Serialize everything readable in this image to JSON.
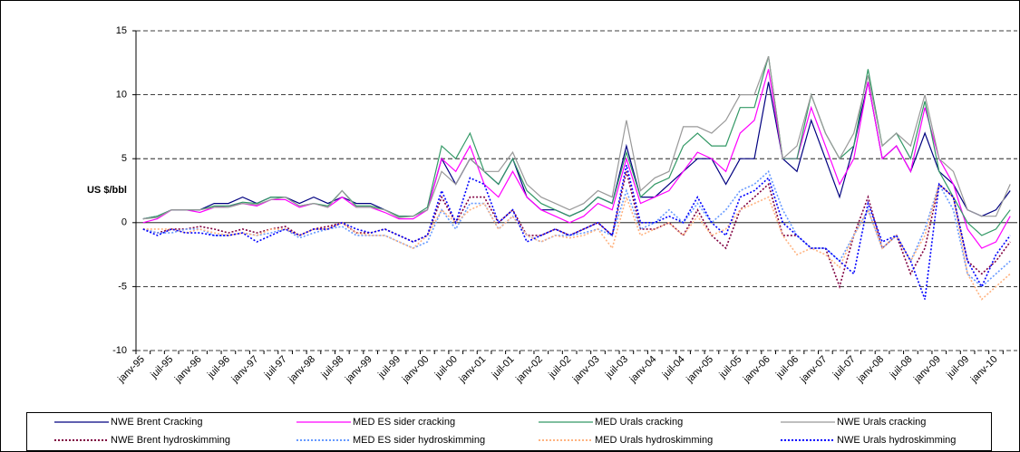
{
  "chart_data": {
    "type": "line",
    "y_label": "US $/bbl",
    "categories": [
      "janv-95",
      null,
      "juil-95",
      null,
      "janv-96",
      null,
      "juil-96",
      null,
      "janv-97",
      null,
      "juil-97",
      null,
      "janv-98",
      null,
      "juil-98",
      null,
      "janv-99",
      null,
      "juil-99",
      null,
      "janv-00",
      null,
      "juil-00",
      null,
      "janv-01",
      null,
      "juil-01",
      null,
      "janv-02",
      null,
      "juil-02",
      null,
      "janv-03",
      null,
      "juil-03",
      null,
      "janv-04",
      null,
      "juil-04",
      null,
      "janv-05",
      null,
      "juil-05",
      null,
      "janv-06",
      null,
      "juil-06",
      null,
      "janv-07",
      null,
      "juil-07",
      null,
      "janv-08",
      null,
      "juil-08",
      null,
      "janv-09",
      null,
      "juil-09",
      null,
      "janv-10",
      null
    ],
    "ylim": [
      -10,
      15
    ],
    "yticks": [
      -10,
      -5,
      0,
      5,
      10,
      15
    ],
    "grid": true,
    "series": [
      {
        "name": "NWE Brent Cracking",
        "color": "#000080",
        "dash": false,
        "values": [
          0.3,
          0.5,
          1,
          1,
          1,
          1.5,
          1.5,
          2,
          1.5,
          2,
          2,
          1.5,
          2,
          1.5,
          2,
          1.5,
          1.5,
          1,
          0.5,
          0.5,
          1,
          5,
          3,
          5,
          4,
          3,
          5,
          2,
          1,
          1,
          0.5,
          1,
          2,
          1.5,
          6,
          2,
          2,
          3,
          4,
          5,
          5,
          3,
          5,
          5,
          11,
          5,
          4,
          8,
          5,
          2,
          6,
          11,
          5,
          6,
          4,
          7,
          4,
          3,
          1,
          0.5,
          1,
          2.5
        ]
      },
      {
        "name": "MED ES sider cracking",
        "color": "#ff00ff",
        "dash": false,
        "values": [
          0,
          0.3,
          1,
          1,
          0.8,
          1.2,
          1.3,
          1.5,
          1.3,
          1.8,
          1.8,
          1.2,
          1.5,
          1.2,
          2,
          1.2,
          1.2,
          0.8,
          0.3,
          0.3,
          1,
          5,
          4,
          6,
          3,
          2,
          4,
          2,
          1,
          0.5,
          0,
          0.5,
          1.5,
          1,
          5,
          1.5,
          2,
          2.5,
          4,
          5.5,
          5,
          4,
          7,
          8,
          12,
          5,
          5,
          9,
          6,
          3,
          5,
          11,
          5,
          6,
          4,
          9,
          5,
          3,
          -0.5,
          -2,
          -1.5,
          0.5
        ]
      },
      {
        "name": "MED Urals cracking",
        "color": "#339966",
        "dash": false,
        "values": [
          0.3,
          0.5,
          1,
          1,
          1,
          1.3,
          1.3,
          1.6,
          1.5,
          2,
          2,
          1.3,
          1.5,
          1.3,
          2.5,
          1.3,
          1.3,
          1,
          0.5,
          0.5,
          1.2,
          6,
          5,
          7,
          4,
          3,
          5,
          2.5,
          1.5,
          1,
          0.5,
          1,
          2,
          1.5,
          5.5,
          2,
          3,
          3.5,
          6,
          7,
          6,
          6,
          9,
          9,
          13,
          5,
          5,
          10,
          7,
          5,
          6,
          12,
          6,
          7,
          5,
          9.5,
          4,
          2,
          0,
          -1,
          -0.5,
          1
        ]
      },
      {
        "name": "NWE Urals cracking",
        "color": "#999999",
        "dash": false,
        "values": [
          0.3,
          0.4,
          1,
          1,
          1,
          1.2,
          1.2,
          1.5,
          1.4,
          1.8,
          2,
          1.3,
          1.5,
          1.2,
          2.5,
          1.2,
          1.2,
          1,
          0.4,
          0.5,
          1,
          4,
          3,
          5,
          4,
          4,
          5.5,
          3,
          2,
          1.5,
          1,
          1.5,
          2.5,
          2,
          8,
          2.5,
          3.5,
          4,
          7.5,
          7.5,
          7,
          8,
          10,
          10,
          13,
          5,
          6,
          10,
          7,
          5,
          7,
          11.5,
          6,
          7,
          6,
          10,
          5,
          4,
          1,
          0.5,
          0.5,
          3
        ]
      },
      {
        "name": "NWE Brent hydroskimming",
        "color": "#800040",
        "dash": true,
        "values": [
          -0.5,
          -0.8,
          -0.5,
          -0.5,
          -0.3,
          -0.5,
          -0.8,
          -0.5,
          -0.8,
          -0.5,
          -0.3,
          -1,
          -0.5,
          -0.3,
          0,
          -0.8,
          -0.8,
          -0.5,
          -1,
          -1.5,
          -1,
          2,
          0,
          2,
          2,
          0,
          1,
          -1,
          -1,
          -0.5,
          -1,
          -0.5,
          0,
          -1,
          4,
          -0.5,
          -0.5,
          0,
          -1,
          1,
          -1,
          -2,
          1,
          2,
          3,
          -1,
          -1,
          -2,
          -2,
          -5,
          -1,
          2,
          -2,
          -1,
          -4,
          -2,
          3,
          2,
          -3,
          -4,
          -3,
          -1.5
        ]
      },
      {
        "name": "MED ES sider hydroskimming",
        "color": "#6699ff",
        "dash": true,
        "values": [
          -0.5,
          -0.8,
          -0.8,
          -0.5,
          -0.5,
          -1,
          -1,
          -0.8,
          -1,
          -0.8,
          -0.5,
          -1.2,
          -0.8,
          -0.5,
          -0.3,
          -1,
          -1,
          -1,
          -1.5,
          -2,
          -1.5,
          1,
          -0.5,
          1.5,
          1.5,
          -0.5,
          0.5,
          -1,
          -1.5,
          -1,
          -1,
          -0.8,
          -0.5,
          -1,
          2.5,
          -0.5,
          0,
          1,
          0,
          1.5,
          0,
          1,
          2.5,
          3,
          4,
          1,
          -1,
          -2,
          -2,
          -3,
          -1,
          1,
          -2,
          -1,
          -3,
          -0.5,
          3,
          1,
          -4,
          -5,
          -4,
          -3
        ]
      },
      {
        "name": "MED Urals hydroskimming",
        "color": "#ffb380",
        "dash": true,
        "values": [
          -0.5,
          -0.5,
          -0.5,
          -0.8,
          -0.5,
          -0.8,
          -1,
          -0.8,
          -1,
          -0.5,
          -0.5,
          -1,
          -0.5,
          -0.5,
          0,
          -0.8,
          -1,
          -1,
          -1.5,
          -2,
          -1,
          1,
          0,
          1,
          1.5,
          -0.5,
          0.5,
          -1,
          -1.5,
          -1,
          -1.2,
          -1,
          -0.5,
          -2,
          2,
          -1,
          -0.5,
          0,
          -1,
          0.5,
          -1,
          -0.5,
          1,
          1.5,
          2,
          -1,
          -2.5,
          -2,
          -2.5,
          -3.5,
          -1,
          1,
          -2,
          -1,
          -3,
          -1,
          3,
          2,
          -4,
          -6,
          -5,
          -4
        ]
      },
      {
        "name": "NWE Urals hydroskimming",
        "color": "#0000ff",
        "dash": true,
        "values": [
          -0.5,
          -1,
          -0.5,
          -0.8,
          -0.8,
          -1,
          -1,
          -0.8,
          -1.5,
          -1,
          -0.5,
          -1,
          -0.5,
          -0.5,
          0,
          -0.5,
          -0.8,
          -0.5,
          -1,
          -1.5,
          -1,
          2.5,
          0,
          3.5,
          3,
          0,
          1,
          -1.5,
          -1,
          -0.5,
          -1,
          -0.5,
          0,
          -1,
          4.5,
          0,
          0,
          0.5,
          0,
          2,
          0,
          -1,
          2,
          2.5,
          3.5,
          0,
          -1,
          -2,
          -2,
          -3,
          -4,
          1.5,
          -1.5,
          -1,
          -3,
          -6,
          3,
          2,
          -3,
          -5,
          -2.5,
          -1
        ]
      }
    ]
  }
}
